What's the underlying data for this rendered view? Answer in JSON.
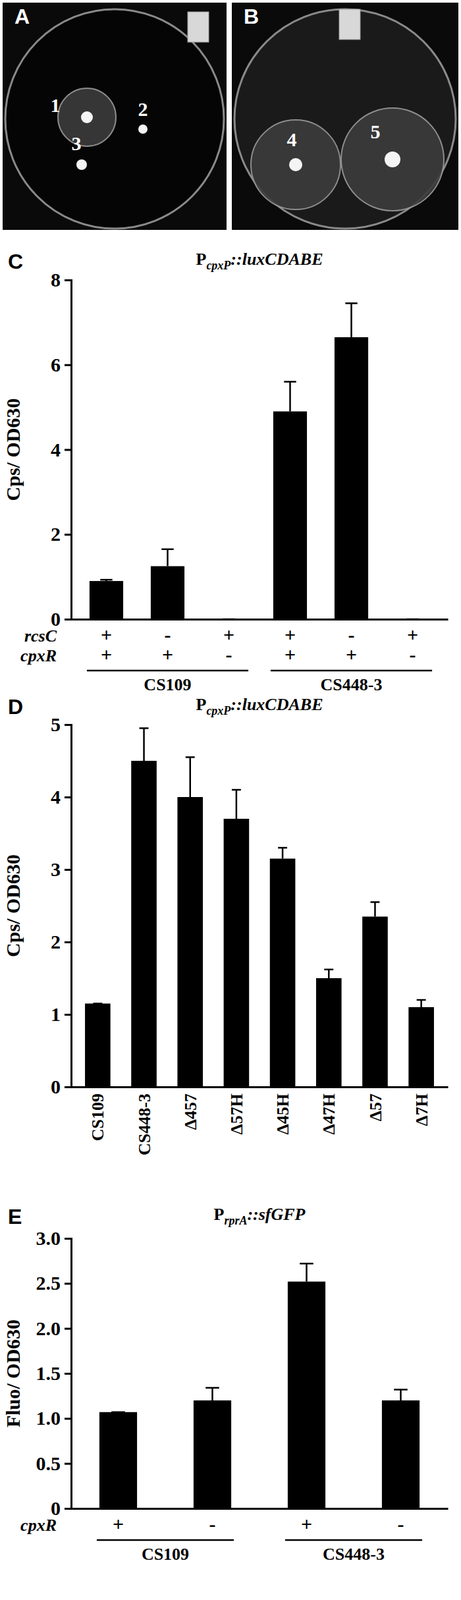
{
  "plates": [
    {
      "label": "A",
      "colonies": [
        "1",
        "2",
        "3"
      ]
    },
    {
      "label": "B",
      "colonies": [
        "4",
        "5"
      ]
    }
  ],
  "chart_data": [
    {
      "type": "bar",
      "annotations": [
        "C"
      ],
      "title": [
        "P",
        "cpxP",
        "::luxCDABE"
      ],
      "ylabel": "Cps/ OD630",
      "categories": [
        null,
        null,
        null,
        null,
        null,
        null
      ],
      "values": [
        0.9,
        1.25,
        0,
        4.9,
        6.65,
        0
      ],
      "errors": [
        0.03,
        0.4,
        0,
        0.7,
        0.8,
        0
      ],
      "color": "#000000",
      "ylim": [
        0,
        8
      ],
      "yticks": [
        0,
        2,
        4,
        6,
        8
      ],
      "rows": [
        {
          "label": "rcsC",
          "values": [
            "+",
            "-",
            "+",
            "+",
            "-",
            "+"
          ]
        },
        {
          "label": "cpxR",
          "values": [
            "+",
            "+",
            "-",
            "+",
            "+",
            "-"
          ]
        }
      ],
      "groups": [
        {
          "label": "CS109",
          "size": 3
        },
        {
          "label": "CS448-3",
          "size": 3
        }
      ]
    },
    {
      "type": "bar",
      "annotations": [
        "D"
      ],
      "title": [
        "P",
        "cpxP",
        "::luxCDABE"
      ],
      "ylabel": "Cps/ OD630",
      "categories": [
        "CS109",
        "CS448-3",
        "Δ457",
        "Δ57H",
        "Δ45H",
        "Δ47H",
        "Δ57",
        "Δ7H"
      ],
      "values": [
        1.15,
        4.5,
        4.0,
        3.7,
        3.15,
        1.5,
        2.35,
        1.1
      ],
      "errors": [
        0,
        0.45,
        0.55,
        0.4,
        0.15,
        0.12,
        0.2,
        0.1
      ],
      "color": "#000000",
      "ylim": [
        0,
        5
      ],
      "yticks": [
        0,
        1,
        2,
        3,
        4,
        5
      ]
    },
    {
      "type": "bar",
      "annotations": [
        "E"
      ],
      "title": [
        "P",
        "rprA",
        "::sfGFP"
      ],
      "ylabel": "Fluo/ OD630",
      "categories": [
        null,
        null,
        null,
        null
      ],
      "values": [
        1.07,
        1.2,
        2.52,
        1.2
      ],
      "errors": [
        0,
        0.14,
        0.2,
        0.12
      ],
      "color": "#000000",
      "ylim": [
        0,
        3
      ],
      "yticks": [
        0,
        0.5,
        {
          "value": 1,
          "label": "1.0"
        },
        1.5,
        {
          "value": 2,
          "label": "2.0"
        },
        2.5,
        {
          "value": 3,
          "label": "3.0"
        }
      ],
      "rows": [
        {
          "label": "cpxR",
          "values": [
            "+",
            "-",
            "+",
            "-"
          ]
        }
      ],
      "groups": [
        {
          "label": "CS109",
          "size": 2
        },
        {
          "label": "CS448-3",
          "size": 2
        }
      ]
    }
  ]
}
